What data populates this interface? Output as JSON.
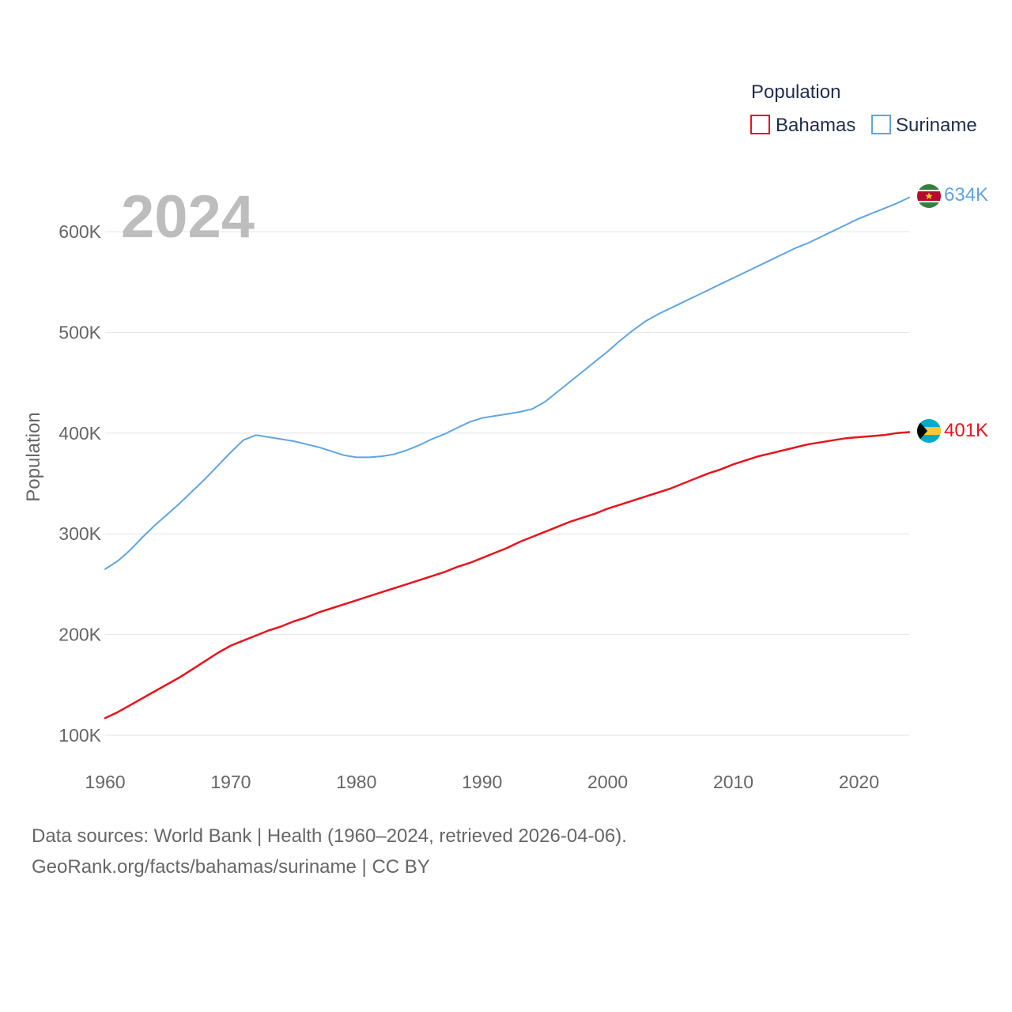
{
  "chart_data": {
    "type": "line",
    "year_label": "2024",
    "ylabel": "Population",
    "xlabel": "",
    "xlim": [
      1960,
      2024
    ],
    "ylim": [
      80000,
      660000
    ],
    "x_ticks": [
      1960,
      1970,
      1980,
      1990,
      2000,
      2010,
      2020
    ],
    "x_tick_labels": [
      "1960",
      "1970",
      "1980",
      "1990",
      "2000",
      "2010",
      "2020"
    ],
    "y_ticks": [
      100000,
      200000,
      300000,
      400000,
      500000,
      600000
    ],
    "y_tick_labels": [
      "100K",
      "200K",
      "300K",
      "400K",
      "500K",
      "600K"
    ],
    "legend": {
      "title": "Population",
      "placement": "top-right",
      "entries": [
        "Bahamas",
        "Suriname"
      ]
    },
    "x": [
      1960,
      1961,
      1962,
      1963,
      1964,
      1965,
      1966,
      1967,
      1968,
      1969,
      1970,
      1971,
      1972,
      1973,
      1974,
      1975,
      1976,
      1977,
      1978,
      1979,
      1980,
      1981,
      1982,
      1983,
      1984,
      1985,
      1986,
      1987,
      1988,
      1989,
      1990,
      1991,
      1992,
      1993,
      1994,
      1995,
      1996,
      1997,
      1998,
      1999,
      2000,
      2001,
      2002,
      2003,
      2004,
      2005,
      2006,
      2007,
      2008,
      2009,
      2010,
      2011,
      2012,
      2013,
      2014,
      2015,
      2016,
      2017,
      2018,
      2019,
      2020,
      2021,
      2022,
      2023,
      2024
    ],
    "series": [
      {
        "name": "Bahamas",
        "color": "#e8141c",
        "end_label": "401K",
        "flag": "bahamas-flag",
        "values": [
          117000,
          123000,
          130000,
          137000,
          144000,
          151000,
          158000,
          166000,
          174000,
          182000,
          189000,
          194000,
          199000,
          204000,
          208000,
          213000,
          217000,
          222000,
          226000,
          230000,
          234000,
          238000,
          242000,
          246000,
          250000,
          254000,
          258000,
          262000,
          267000,
          271000,
          276000,
          281000,
          286000,
          292000,
          297000,
          302000,
          307000,
          312000,
          316000,
          320000,
          325000,
          329000,
          333000,
          337000,
          341000,
          345000,
          350000,
          355000,
          360000,
          364000,
          369000,
          373000,
          377000,
          380000,
          383000,
          386000,
          389000,
          391000,
          393000,
          395000,
          396000,
          397000,
          398000,
          400000,
          401000
        ]
      },
      {
        "name": "Suriname",
        "color": "#5fa5e2",
        "end_label": "634K",
        "flag": "suriname-flag",
        "values": [
          265000,
          273000,
          284000,
          297000,
          309000,
          320000,
          331000,
          343000,
          355000,
          368000,
          381000,
          393000,
          398000,
          396000,
          394000,
          392000,
          389000,
          386000,
          382000,
          378000,
          376000,
          376000,
          377000,
          379000,
          383000,
          388000,
          394000,
          399000,
          405000,
          411000,
          415000,
          417000,
          419000,
          421000,
          424000,
          431000,
          441000,
          451000,
          461000,
          471000,
          481000,
          492000,
          502000,
          511000,
          518000,
          524000,
          530000,
          536000,
          542000,
          548000,
          554000,
          560000,
          566000,
          572000,
          578000,
          584000,
          589000,
          595000,
          601000,
          607000,
          613000,
          618000,
          623000,
          628000,
          634000
        ]
      }
    ]
  },
  "footer": {
    "line1": "Data sources: World Bank | Health (1960–2024, retrieved 2026-04-06).",
    "line2": "GeoRank.org/facts/bahamas/suriname | CC BY"
  }
}
